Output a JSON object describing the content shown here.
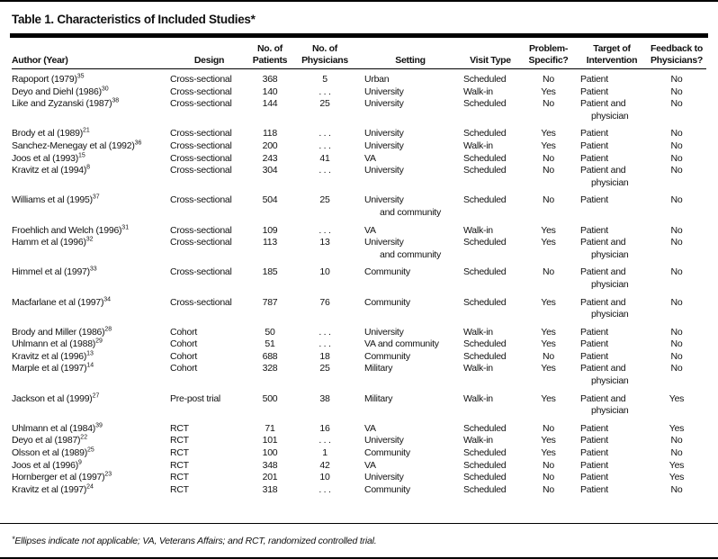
{
  "page": {
    "title": "Table 1. Characteristics of Included Studies",
    "title_marker": "*",
    "footnote_marker": "*",
    "footnote": "Ellipses indicate not applicable; VA, Veterans Affairs; and RCT, randomized controlled trial."
  },
  "colors": {
    "background": "#ffffff",
    "text": "#111111",
    "rule": "#000000"
  },
  "table": {
    "ellipsis": ". . .",
    "columns": [
      {
        "key": "author",
        "lines": [
          "Author (Year)"
        ]
      },
      {
        "key": "design",
        "lines": [
          "Design"
        ]
      },
      {
        "key": "patients",
        "lines": [
          "No. of",
          "Patients"
        ]
      },
      {
        "key": "physicians",
        "lines": [
          "No. of",
          "Physicians"
        ]
      },
      {
        "key": "setting",
        "lines": [
          "Setting"
        ]
      },
      {
        "key": "visit",
        "lines": [
          "Visit Type"
        ]
      },
      {
        "key": "problem",
        "lines": [
          "Problem-",
          "Specific?"
        ]
      },
      {
        "key": "target",
        "lines": [
          "Target of",
          "Intervention"
        ]
      },
      {
        "key": "feedback",
        "lines": [
          "Feedback to",
          "Physicians?"
        ]
      }
    ],
    "rows": [
      {
        "author": "Rapoport (1979)",
        "ref": "35",
        "design": "Cross-sectional",
        "patients": "368",
        "physicians": "5",
        "setting": [
          "Urban"
        ],
        "visit": "Scheduled",
        "problem": "No",
        "target": [
          "Patient"
        ],
        "feedback": "No"
      },
      {
        "author": "Deyo and Diehl (1986)",
        "ref": "30",
        "design": "Cross-sectional",
        "patients": "140",
        "physicians": ". . .",
        "setting": [
          "University"
        ],
        "visit": "Walk-in",
        "problem": "Yes",
        "target": [
          "Patient"
        ],
        "feedback": "No"
      },
      {
        "author": "Like and Zyzanski (1987)",
        "ref": "38",
        "design": "Cross-sectional",
        "patients": "144",
        "physicians": "25",
        "setting": [
          "University"
        ],
        "visit": "Scheduled",
        "problem": "No",
        "target": [
          "Patient and",
          "physician"
        ],
        "feedback": "No"
      },
      {
        "author": "Brody et al (1989)",
        "ref": "21",
        "design": "Cross-sectional",
        "patients": "118",
        "physicians": ". . .",
        "setting": [
          "University"
        ],
        "visit": "Scheduled",
        "problem": "Yes",
        "target": [
          "Patient"
        ],
        "feedback": "No"
      },
      {
        "author": "Sanchez-Menegay et al (1992)",
        "ref": "36",
        "design": "Cross-sectional",
        "patients": "200",
        "physicians": ". . .",
        "setting": [
          "University"
        ],
        "visit": "Walk-in",
        "problem": "Yes",
        "target": [
          "Patient"
        ],
        "feedback": "No"
      },
      {
        "author": "Joos et al (1993)",
        "ref": "15",
        "design": "Cross-sectional",
        "patients": "243",
        "physicians": "41",
        "setting": [
          "VA"
        ],
        "visit": "Scheduled",
        "problem": "No",
        "target": [
          "Patient"
        ],
        "feedback": "No"
      },
      {
        "author": "Kravitz et al (1994)",
        "ref": "8",
        "design": "Cross-sectional",
        "patients": "304",
        "physicians": ". . .",
        "setting": [
          "University"
        ],
        "visit": "Scheduled",
        "problem": "No",
        "target": [
          "Patient and",
          "physician"
        ],
        "feedback": "No"
      },
      {
        "author": "Williams et al (1995)",
        "ref": "37",
        "design": "Cross-sectional",
        "patients": "504",
        "physicians": "25",
        "setting": [
          "University",
          "and community"
        ],
        "visit": "Scheduled",
        "problem": "No",
        "target": [
          "Patient"
        ],
        "feedback": "No"
      },
      {
        "author": "Froehlich and Welch (1996)",
        "ref": "31",
        "design": "Cross-sectional",
        "patients": "109",
        "physicians": ". . .",
        "setting": [
          "VA"
        ],
        "visit": "Walk-in",
        "problem": "Yes",
        "target": [
          "Patient"
        ],
        "feedback": "No"
      },
      {
        "author": "Hamm et al (1996)",
        "ref": "32",
        "design": "Cross-sectional",
        "patients": "113",
        "physicians": "13",
        "setting": [
          "University",
          "and community"
        ],
        "visit": "Scheduled",
        "problem": "Yes",
        "target": [
          "Patient and",
          "physician"
        ],
        "feedback": "No"
      },
      {
        "author": "Himmel et al (1997)",
        "ref": "33",
        "design": "Cross-sectional",
        "patients": "185",
        "physicians": "10",
        "setting": [
          "Community"
        ],
        "visit": "Scheduled",
        "problem": "No",
        "target": [
          "Patient and",
          "physician"
        ],
        "feedback": "No"
      },
      {
        "author": "Macfarlane et al (1997)",
        "ref": "34",
        "design": "Cross-sectional",
        "patients": "787",
        "physicians": "76",
        "setting": [
          "Community"
        ],
        "visit": "Scheduled",
        "problem": "Yes",
        "target": [
          "Patient and",
          "physician"
        ],
        "feedback": "No"
      },
      {
        "author": "Brody and Miller (1986)",
        "ref": "28",
        "design": "Cohort",
        "patients": "50",
        "physicians": ". . .",
        "setting": [
          "University"
        ],
        "visit": "Walk-in",
        "problem": "Yes",
        "target": [
          "Patient"
        ],
        "feedback": "No"
      },
      {
        "author": "Uhlmann et al (1988)",
        "ref": "29",
        "design": "Cohort",
        "patients": "51",
        "physicians": ". . .",
        "setting": [
          "VA and community"
        ],
        "visit": "Scheduled",
        "problem": "Yes",
        "target": [
          "Patient"
        ],
        "feedback": "No"
      },
      {
        "author": "Kravitz et al (1996)",
        "ref": "13",
        "design": "Cohort",
        "patients": "688",
        "physicians": "18",
        "setting": [
          "Community"
        ],
        "visit": "Scheduled",
        "problem": "No",
        "target": [
          "Patient"
        ],
        "feedback": "No"
      },
      {
        "author": "Marple et al (1997)",
        "ref": "14",
        "design": "Cohort",
        "patients": "328",
        "physicians": "25",
        "setting": [
          "Military"
        ],
        "visit": "Walk-in",
        "problem": "Yes",
        "target": [
          "Patient and",
          "physician"
        ],
        "feedback": "No"
      },
      {
        "author": "Jackson et al (1999)",
        "ref": "27",
        "design": "Pre-post trial",
        "patients": "500",
        "physicians": "38",
        "setting": [
          "Military"
        ],
        "visit": "Walk-in",
        "problem": "Yes",
        "target": [
          "Patient and",
          "physician"
        ],
        "feedback": "Yes"
      },
      {
        "author": "Uhlmann et al (1984)",
        "ref": "39",
        "design": "RCT",
        "patients": "71",
        "physicians": "16",
        "setting": [
          "VA"
        ],
        "visit": "Scheduled",
        "problem": "No",
        "target": [
          "Patient"
        ],
        "feedback": "Yes"
      },
      {
        "author": "Deyo et al (1987)",
        "ref": "22",
        "design": "RCT",
        "patients": "101",
        "physicians": ". . .",
        "setting": [
          "University"
        ],
        "visit": "Walk-in",
        "problem": "Yes",
        "target": [
          "Patient"
        ],
        "feedback": "No"
      },
      {
        "author": "Olsson et al (1989)",
        "ref": "25",
        "design": "RCT",
        "patients": "100",
        "physicians": "1",
        "setting": [
          "Community"
        ],
        "visit": "Scheduled",
        "problem": "Yes",
        "target": [
          "Patient"
        ],
        "feedback": "No"
      },
      {
        "author": "Joos et al (1996)",
        "ref": "9",
        "design": "RCT",
        "patients": "348",
        "physicians": "42",
        "setting": [
          "VA"
        ],
        "visit": "Scheduled",
        "problem": "No",
        "target": [
          "Patient"
        ],
        "feedback": "Yes"
      },
      {
        "author": "Hornberger et al (1997)",
        "ref": "23",
        "design": "RCT",
        "patients": "201",
        "physicians": "10",
        "setting": [
          "University"
        ],
        "visit": "Scheduled",
        "problem": "No",
        "target": [
          "Patient"
        ],
        "feedback": "Yes"
      },
      {
        "author": "Kravitz et al (1997)",
        "ref": "24",
        "design": "RCT",
        "patients": "318",
        "physicians": ". . .",
        "setting": [
          "Community"
        ],
        "visit": "Scheduled",
        "problem": "No",
        "target": [
          "Patient"
        ],
        "feedback": "No"
      }
    ]
  }
}
